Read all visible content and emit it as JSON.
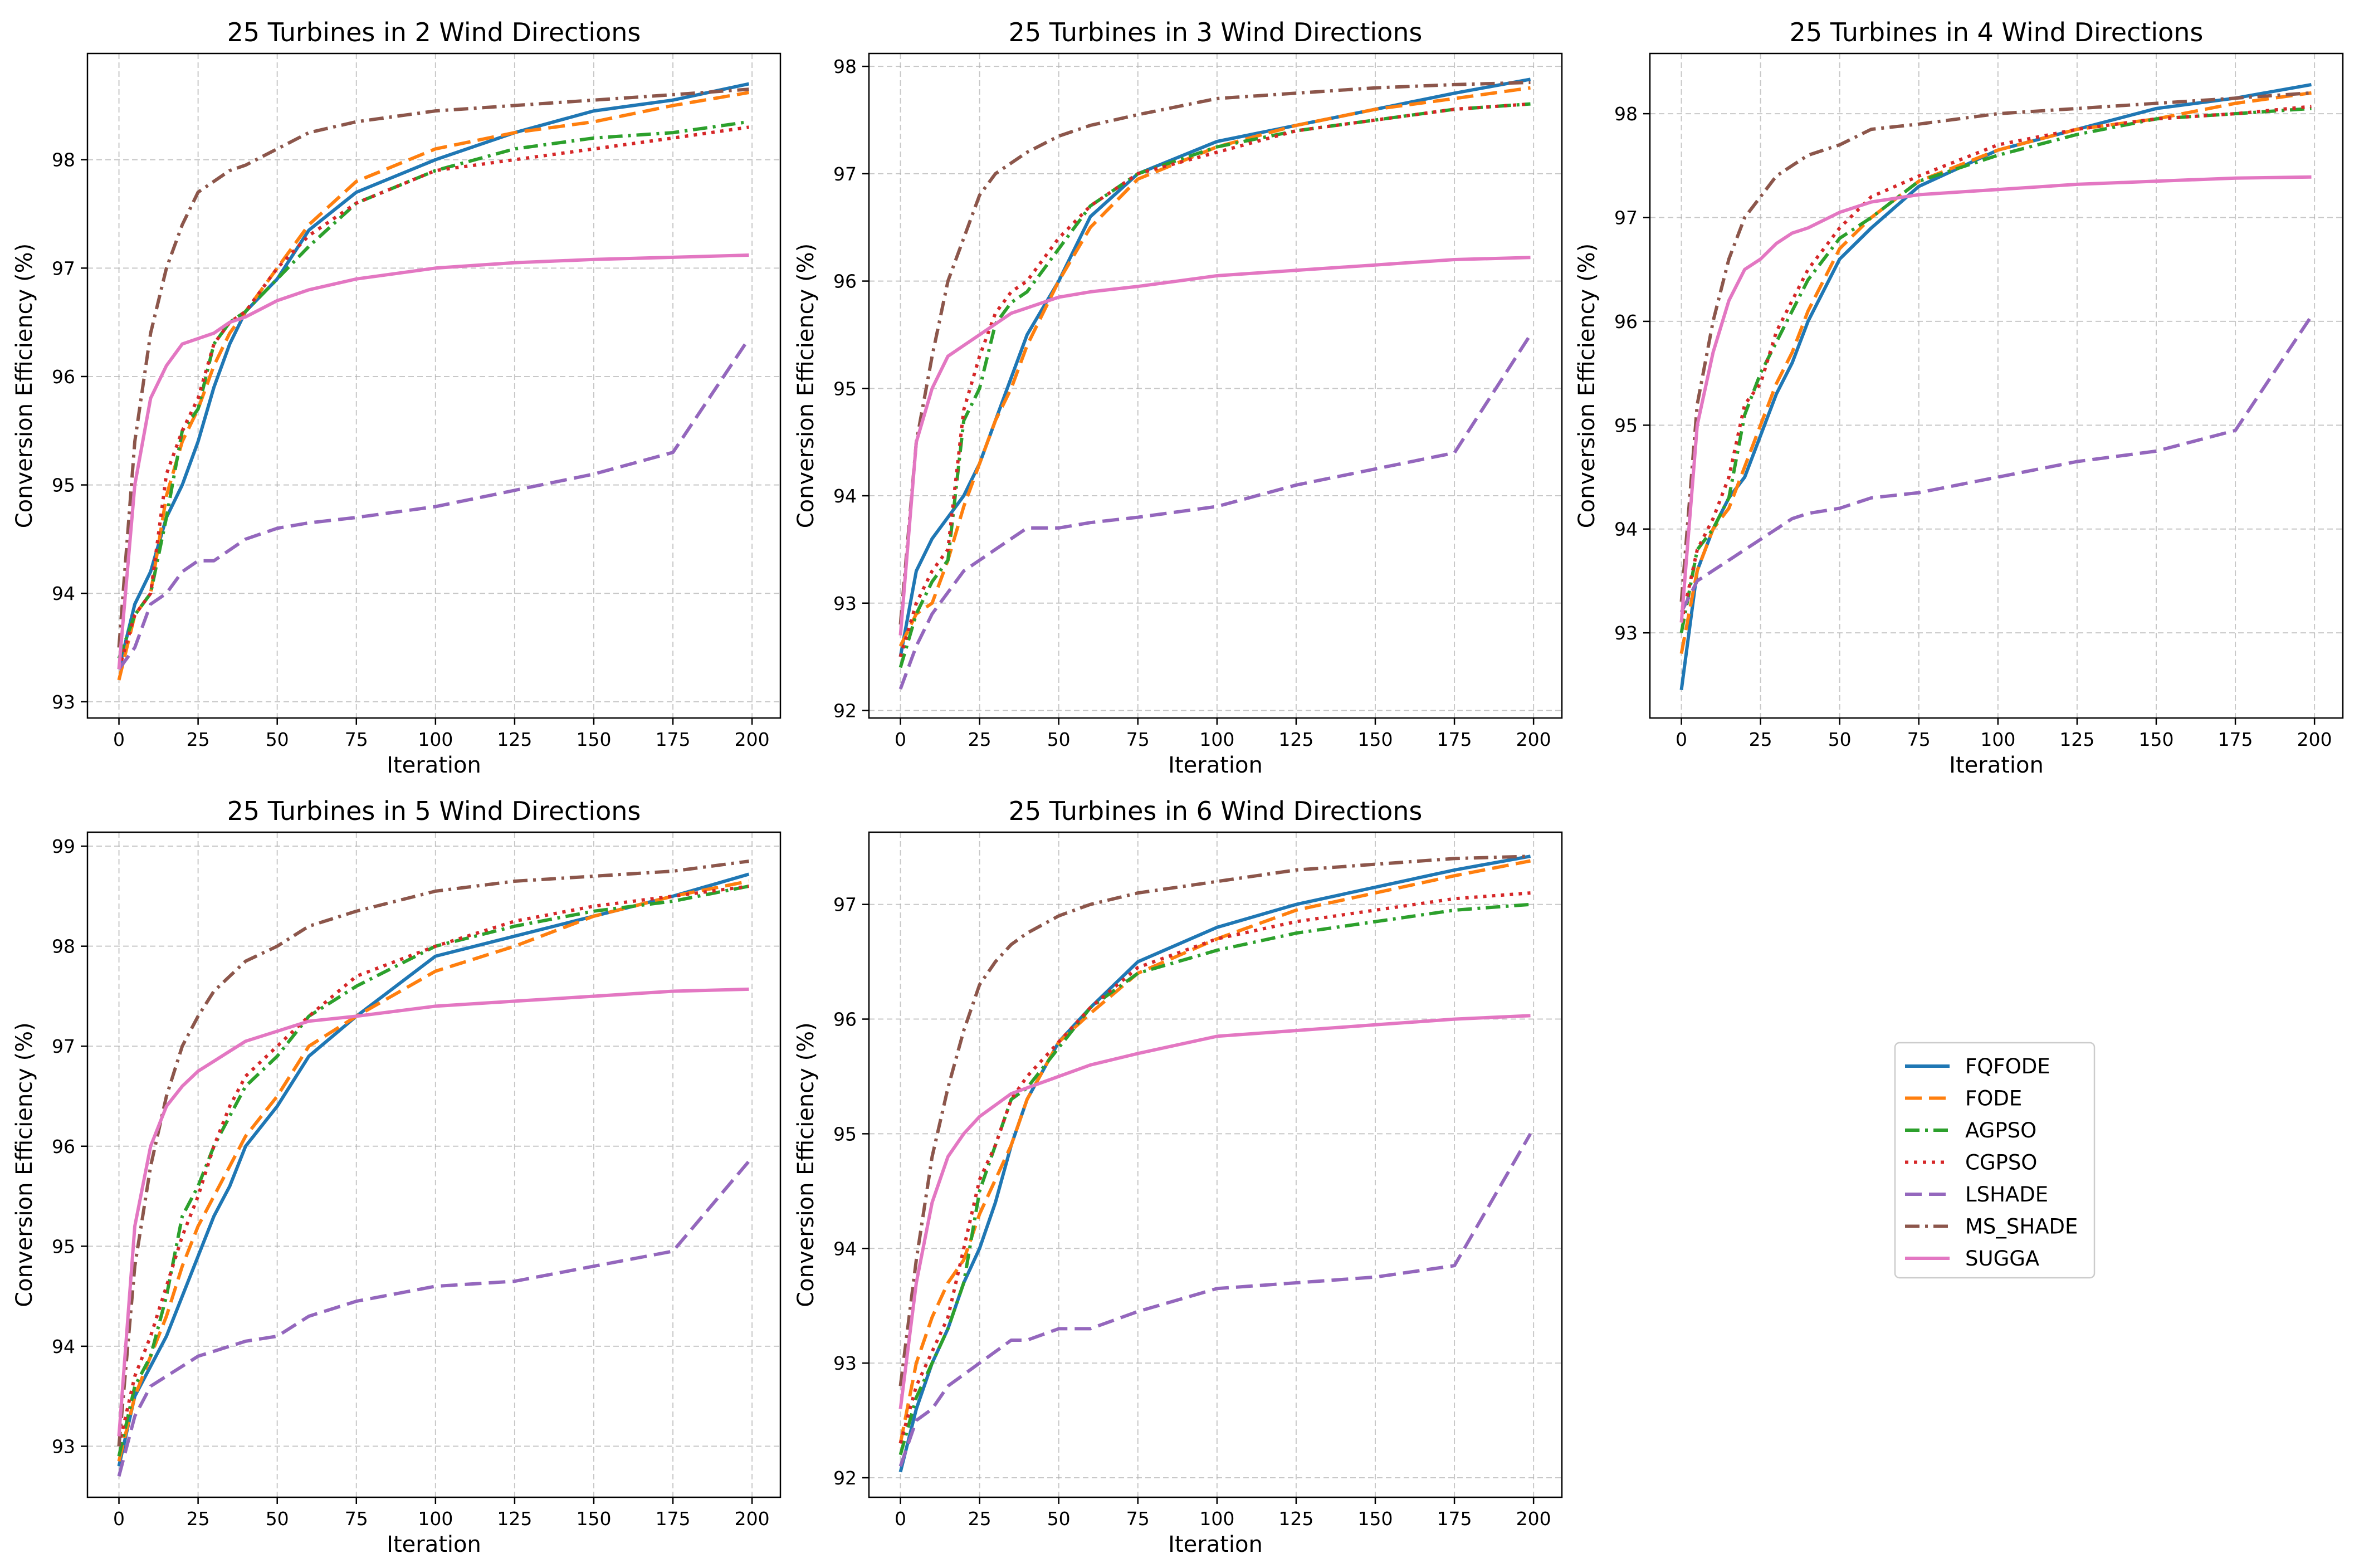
{
  "chart_data": [
    {
      "type": "line",
      "title": "25 Turbines in 2 Wind Directions",
      "xlabel": "Iteration",
      "ylabel": "Conversion Efficiency (%)",
      "xlim": [
        -9.95,
        208.95
      ],
      "ylim": [
        92.85,
        98.98
      ],
      "xticks": [
        0,
        25,
        50,
        75,
        100,
        125,
        150,
        175,
        200
      ],
      "yticks": [
        93,
        94,
        95,
        96,
        97,
        98
      ],
      "grid": true,
      "x": [
        0,
        5,
        10,
        15,
        20,
        25,
        30,
        35,
        40,
        50,
        60,
        75,
        100,
        125,
        150,
        175,
        199
      ],
      "series": [
        {
          "name": "FQFODE",
          "values": [
            93.3,
            93.9,
            94.2,
            94.7,
            95.0,
            95.4,
            95.9,
            96.3,
            96.6,
            96.9,
            97.35,
            97.7,
            98.0,
            98.25,
            98.45,
            98.55,
            98.7
          ]
        },
        {
          "name": "FODE",
          "values": [
            93.2,
            93.8,
            94.0,
            94.9,
            95.4,
            95.7,
            96.1,
            96.4,
            96.6,
            97.0,
            97.4,
            97.8,
            98.1,
            98.25,
            98.35,
            98.5,
            98.62
          ]
        },
        {
          "name": "AGPSO",
          "values": [
            93.4,
            93.8,
            94.0,
            94.7,
            95.5,
            95.7,
            96.3,
            96.5,
            96.6,
            96.9,
            97.2,
            97.6,
            97.9,
            98.1,
            98.2,
            98.25,
            98.35
          ]
        },
        {
          "name": "CGPSO",
          "values": [
            93.3,
            93.8,
            94.0,
            95.1,
            95.5,
            95.8,
            96.3,
            96.5,
            96.6,
            97.0,
            97.3,
            97.6,
            97.9,
            98.0,
            98.1,
            98.2,
            98.3
          ]
        },
        {
          "name": "LSHADE",
          "values": [
            93.3,
            93.5,
            93.9,
            94.0,
            94.2,
            94.3,
            94.3,
            94.4,
            94.5,
            94.6,
            94.65,
            94.7,
            94.8,
            94.95,
            95.1,
            95.3,
            96.35
          ]
        },
        {
          "name": "MS_SHADE",
          "values": [
            93.5,
            95.4,
            96.4,
            97.0,
            97.4,
            97.7,
            97.8,
            97.9,
            97.95,
            98.1,
            98.25,
            98.35,
            98.45,
            98.5,
            98.55,
            98.6,
            98.65
          ]
        },
        {
          "name": "SUGGA",
          "values": [
            93.3,
            95.0,
            95.8,
            96.1,
            96.3,
            96.35,
            96.4,
            96.5,
            96.55,
            96.7,
            96.8,
            96.9,
            97.0,
            97.05,
            97.08,
            97.1,
            97.12
          ]
        }
      ]
    },
    {
      "type": "line",
      "title": "25 Turbines in 3 Wind Directions",
      "xlabel": "Iteration",
      "ylabel": "Conversion Efficiency (%)",
      "xlim": [
        -9.95,
        208.95
      ],
      "ylim": [
        91.93,
        98.12
      ],
      "xticks": [
        0,
        25,
        50,
        75,
        100,
        125,
        150,
        175,
        200
      ],
      "yticks": [
        92,
        93,
        94,
        95,
        96,
        97,
        98
      ],
      "grid": true,
      "x": [
        0,
        5,
        10,
        15,
        20,
        25,
        30,
        35,
        40,
        50,
        60,
        75,
        100,
        125,
        150,
        175,
        199
      ],
      "series": [
        {
          "name": "FQFODE",
          "values": [
            92.5,
            93.3,
            93.6,
            93.8,
            94.0,
            94.3,
            94.7,
            95.1,
            95.5,
            96.0,
            96.6,
            97.0,
            97.3,
            97.45,
            97.6,
            97.75,
            97.88
          ]
        },
        {
          "name": "FODE",
          "values": [
            92.6,
            92.9,
            93.0,
            93.4,
            93.9,
            94.3,
            94.7,
            95.0,
            95.4,
            96.0,
            96.5,
            96.95,
            97.25,
            97.45,
            97.6,
            97.7,
            97.8
          ]
        },
        {
          "name": "AGPSO",
          "values": [
            92.4,
            92.9,
            93.2,
            93.4,
            94.7,
            95.0,
            95.6,
            95.8,
            95.9,
            96.3,
            96.7,
            97.0,
            97.25,
            97.4,
            97.5,
            97.6,
            97.65
          ]
        },
        {
          "name": "CGPSO",
          "values": [
            92.5,
            93.0,
            93.3,
            93.5,
            94.8,
            95.3,
            95.7,
            95.9,
            96.0,
            96.4,
            96.7,
            97.0,
            97.2,
            97.4,
            97.5,
            97.6,
            97.65
          ]
        },
        {
          "name": "LSHADE",
          "values": [
            92.2,
            92.6,
            92.9,
            93.1,
            93.3,
            93.4,
            93.5,
            93.6,
            93.7,
            93.7,
            93.75,
            93.8,
            93.9,
            94.1,
            94.25,
            94.4,
            95.5
          ]
        },
        {
          "name": "MS_SHADE",
          "values": [
            92.8,
            94.5,
            95.3,
            96.0,
            96.4,
            96.8,
            97.0,
            97.1,
            97.2,
            97.35,
            97.45,
            97.55,
            97.7,
            97.75,
            97.8,
            97.83,
            97.85
          ]
        },
        {
          "name": "SUGGA",
          "values": [
            92.7,
            94.5,
            95.0,
            95.3,
            95.4,
            95.5,
            95.6,
            95.7,
            95.75,
            95.85,
            95.9,
            95.95,
            96.05,
            96.1,
            96.15,
            96.2,
            96.22
          ]
        }
      ]
    },
    {
      "type": "line",
      "title": "25 Turbines in 4 Wind Directions",
      "xlabel": "Iteration",
      "ylabel": "Conversion Efficiency (%)",
      "xlim": [
        -9.95,
        208.95
      ],
      "ylim": [
        92.18,
        98.58
      ],
      "xticks": [
        0,
        25,
        50,
        75,
        100,
        125,
        150,
        175,
        200
      ],
      "yticks": [
        93,
        94,
        95,
        96,
        97,
        98
      ],
      "grid": true,
      "x": [
        0,
        5,
        10,
        15,
        20,
        25,
        30,
        35,
        40,
        50,
        60,
        75,
        100,
        125,
        150,
        175,
        199
      ],
      "series": [
        {
          "name": "FQFODE",
          "values": [
            92.45,
            93.6,
            94.0,
            94.3,
            94.5,
            94.9,
            95.3,
            95.6,
            96.0,
            96.6,
            96.9,
            97.3,
            97.65,
            97.85,
            98.05,
            98.15,
            98.28
          ]
        },
        {
          "name": "FODE",
          "values": [
            92.8,
            93.6,
            94.0,
            94.2,
            94.6,
            95.0,
            95.4,
            95.7,
            96.1,
            96.7,
            97.0,
            97.35,
            97.65,
            97.85,
            97.95,
            98.1,
            98.2
          ]
        },
        {
          "name": "AGPSO",
          "values": [
            93.0,
            93.8,
            94.0,
            94.3,
            95.1,
            95.5,
            95.8,
            96.1,
            96.4,
            96.8,
            97.0,
            97.35,
            97.6,
            97.8,
            97.95,
            98.0,
            98.05
          ]
        },
        {
          "name": "CGPSO",
          "values": [
            93.1,
            93.8,
            94.1,
            94.5,
            95.2,
            95.4,
            95.9,
            96.2,
            96.5,
            96.9,
            97.2,
            97.4,
            97.7,
            97.85,
            97.95,
            98.0,
            98.07
          ]
        },
        {
          "name": "LSHADE",
          "values": [
            93.2,
            93.5,
            93.6,
            93.7,
            93.8,
            93.9,
            94.0,
            94.1,
            94.15,
            94.2,
            94.3,
            94.35,
            94.5,
            94.65,
            94.75,
            94.95,
            96.05
          ]
        },
        {
          "name": "MS_SHADE",
          "values": [
            93.3,
            95.2,
            96.0,
            96.6,
            97.0,
            97.2,
            97.4,
            97.5,
            97.6,
            97.7,
            97.85,
            97.9,
            98.0,
            98.05,
            98.1,
            98.15,
            98.2
          ]
        },
        {
          "name": "SUGGA",
          "values": [
            93.1,
            95.0,
            95.7,
            96.2,
            96.5,
            96.6,
            96.75,
            96.85,
            96.9,
            97.05,
            97.15,
            97.22,
            97.27,
            97.32,
            97.35,
            97.38,
            97.39
          ]
        }
      ]
    },
    {
      "type": "line",
      "title": "25 Turbines in 5 Wind Directions",
      "xlabel": "Iteration",
      "ylabel": "Conversion Efficiency (%)",
      "xlim": [
        -9.95,
        208.95
      ],
      "ylim": [
        92.49,
        99.14
      ],
      "xticks": [
        0,
        25,
        50,
        75,
        100,
        125,
        150,
        175,
        200
      ],
      "yticks": [
        93,
        94,
        95,
        96,
        97,
        98,
        99
      ],
      "grid": true,
      "x": [
        0,
        5,
        10,
        15,
        20,
        25,
        30,
        35,
        40,
        50,
        60,
        75,
        100,
        125,
        150,
        175,
        199
      ],
      "series": [
        {
          "name": "FQFODE",
          "values": [
            92.8,
            93.5,
            93.8,
            94.1,
            94.5,
            94.9,
            95.3,
            95.6,
            96.0,
            96.4,
            96.9,
            97.3,
            97.9,
            98.1,
            98.3,
            98.5,
            98.72
          ]
        },
        {
          "name": "FODE",
          "values": [
            92.85,
            93.5,
            93.9,
            94.3,
            94.8,
            95.2,
            95.5,
            95.8,
            96.1,
            96.5,
            97.0,
            97.3,
            97.75,
            98.0,
            98.3,
            98.5,
            98.65
          ]
        },
        {
          "name": "AGPSO",
          "values": [
            92.9,
            93.6,
            93.9,
            94.5,
            95.3,
            95.6,
            96.0,
            96.3,
            96.6,
            96.9,
            97.3,
            97.6,
            98.0,
            98.2,
            98.35,
            98.45,
            98.6
          ]
        },
        {
          "name": "CGPSO",
          "values": [
            93.0,
            93.7,
            94.1,
            94.6,
            95.1,
            95.5,
            96.0,
            96.4,
            96.7,
            97.0,
            97.3,
            97.7,
            98.0,
            98.25,
            98.4,
            98.5,
            98.6
          ]
        },
        {
          "name": "LSHADE",
          "values": [
            92.7,
            93.3,
            93.6,
            93.7,
            93.8,
            93.9,
            93.95,
            94.0,
            94.05,
            94.1,
            94.3,
            94.45,
            94.6,
            94.65,
            94.8,
            94.95,
            95.85
          ]
        },
        {
          "name": "MS_SHADE",
          "values": [
            93.0,
            94.8,
            95.8,
            96.5,
            97.0,
            97.3,
            97.55,
            97.7,
            97.85,
            98.0,
            98.2,
            98.35,
            98.55,
            98.65,
            98.7,
            98.75,
            98.85
          ]
        },
        {
          "name": "SUGGA",
          "values": [
            93.1,
            95.2,
            96.0,
            96.4,
            96.6,
            96.75,
            96.85,
            96.95,
            97.05,
            97.15,
            97.25,
            97.3,
            97.4,
            97.45,
            97.5,
            97.55,
            97.57
          ]
        }
      ]
    },
    {
      "type": "line",
      "title": "25 Turbines in 6 Wind Directions",
      "xlabel": "Iteration",
      "ylabel": "Conversion Efficiency (%)",
      "xlim": [
        -9.95,
        208.95
      ],
      "ylim": [
        91.83,
        97.63
      ],
      "xticks": [
        0,
        25,
        50,
        75,
        100,
        125,
        150,
        175,
        200
      ],
      "yticks": [
        92,
        93,
        94,
        95,
        96,
        97
      ],
      "grid": true,
      "x": [
        0,
        5,
        10,
        15,
        20,
        25,
        30,
        35,
        40,
        50,
        60,
        75,
        100,
        125,
        150,
        175,
        199
      ],
      "series": [
        {
          "name": "FQFODE",
          "values": [
            92.05,
            92.6,
            93.0,
            93.3,
            93.7,
            94.0,
            94.4,
            94.9,
            95.3,
            95.8,
            96.1,
            96.5,
            96.8,
            97.0,
            97.15,
            97.3,
            97.42
          ]
        },
        {
          "name": "FODE",
          "values": [
            92.3,
            93.0,
            93.4,
            93.7,
            93.9,
            94.3,
            94.6,
            94.9,
            95.3,
            95.8,
            96.05,
            96.4,
            96.7,
            96.95,
            97.1,
            97.25,
            97.38
          ]
        },
        {
          "name": "AGPSO",
          "values": [
            92.2,
            92.7,
            93.0,
            93.3,
            93.7,
            94.5,
            94.9,
            95.3,
            95.4,
            95.75,
            96.1,
            96.4,
            96.6,
            96.75,
            96.85,
            96.95,
            97.0
          ]
        },
        {
          "name": "CGPSO",
          "values": [
            92.3,
            92.8,
            93.1,
            93.4,
            94.0,
            94.6,
            94.9,
            95.3,
            95.5,
            95.8,
            96.1,
            96.45,
            96.7,
            96.85,
            96.95,
            97.05,
            97.1
          ]
        },
        {
          "name": "LSHADE",
          "values": [
            92.1,
            92.5,
            92.6,
            92.8,
            92.9,
            93.0,
            93.1,
            93.2,
            93.2,
            93.3,
            93.3,
            93.45,
            93.65,
            93.7,
            93.75,
            93.85,
            95.0
          ]
        },
        {
          "name": "MS_SHADE",
          "values": [
            92.8,
            93.9,
            94.8,
            95.4,
            95.9,
            96.3,
            96.5,
            96.65,
            96.75,
            96.9,
            97.0,
            97.1,
            97.2,
            97.3,
            97.35,
            97.4,
            97.42
          ]
        },
        {
          "name": "SUGGA",
          "values": [
            92.6,
            93.7,
            94.4,
            94.8,
            95.0,
            95.15,
            95.25,
            95.35,
            95.4,
            95.5,
            95.6,
            95.7,
            95.85,
            95.9,
            95.95,
            96.0,
            96.03
          ]
        }
      ]
    }
  ],
  "legend": {
    "placement": "right of bottom row",
    "entries": [
      "FQFODE",
      "FODE",
      "AGPSO",
      "CGPSO",
      "LSHADE",
      "MS_SHADE",
      "SUGGA"
    ]
  },
  "series_style": {
    "FQFODE": {
      "color": "#1f77b4",
      "dash": "solid"
    },
    "FODE": {
      "color": "#ff7f0e",
      "dash": "dashed"
    },
    "AGPSO": {
      "color": "#2ca02c",
      "dash": "dashdot"
    },
    "CGPSO": {
      "color": "#d62728",
      "dash": "dotted"
    },
    "LSHADE": {
      "color": "#9467bd",
      "dash": "dashed"
    },
    "MS_SHADE": {
      "color": "#8c564b",
      "dash": "dashdot"
    },
    "SUGGA": {
      "color": "#e377c2",
      "dash": "solid"
    }
  }
}
